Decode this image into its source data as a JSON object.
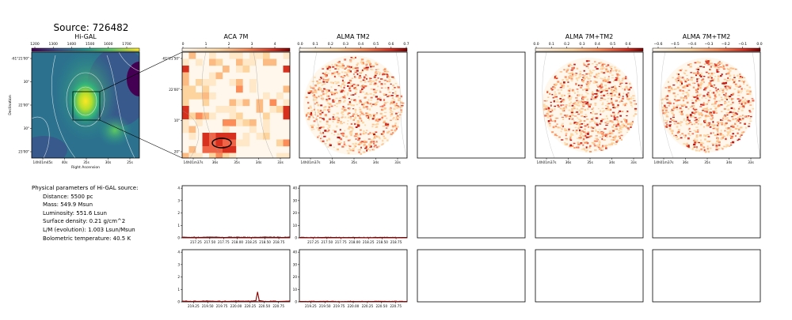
{
  "figure": {
    "source_title": "Source: 726482",
    "panel_titles": [
      "Hi-GAL",
      "ACA 7M",
      "ALMA TM2",
      "ALMA 7M+TM2",
      "ALMA 7M+TM2"
    ],
    "colormaps": {
      "higal": "viridis",
      "maps": "OrRd"
    }
  },
  "colorbars": {
    "higal": [
      "1200",
      "1300",
      "1400",
      "1500",
      "1600",
      "1700"
    ],
    "aca": [
      "0",
      "1",
      "2",
      "3",
      "4"
    ],
    "tm2": [
      "0.0",
      "0.1",
      "0.2",
      "0.3",
      "0.4",
      "0.5",
      "0.6",
      "0.7"
    ],
    "comb1": [
      "0.0",
      "0.1",
      "0.2",
      "0.3",
      "0.4",
      "0.5",
      "0.6"
    ],
    "comb2": [
      "−0.6",
      "−0.5",
      "−0.4",
      "−0.3",
      "−0.2",
      "−0.1",
      "0.0"
    ]
  },
  "axes": {
    "higal": {
      "ylabel": "Declination",
      "xlabel": "Right Ascension",
      "yticks": [
        "-61°21'00\"",
        "30\"",
        "22'00\"",
        "30\"",
        "23'00\""
      ],
      "xticks": [
        "14h01m45s",
        "40s",
        "35s",
        "30s",
        "25s"
      ]
    },
    "aca": {
      "yticks": [
        "-61°21'50\"",
        "22'00\"",
        "10\"",
        "20\""
      ],
      "xticks": [
        "14h01m37s",
        "36s",
        "35s",
        "34s",
        "33s"
      ]
    },
    "tm2": {
      "xticks": [
        "14h01m37s",
        "36s",
        "35s",
        "34s",
        "33s"
      ]
    },
    "comb1": {
      "xticks": [
        "14h01m37s",
        "36s",
        "35s",
        "34s",
        "33s"
      ]
    },
    "comb2": {
      "xticks": [
        "14h01m37s",
        "36s",
        "35s",
        "34s",
        "33s"
      ]
    }
  },
  "info": {
    "heading": "Physical parameters of Hi-GAL source:",
    "lines": [
      "Distance: 5500 pc",
      "Mass: 549.9 Msun",
      "Luminosity: 551.6 Lsun",
      "Surface density: 0.21 g/cm^2",
      "L/M (evolution): 1.003 Lsun/Msun",
      "Bolometric temperature: 40.5 K"
    ]
  },
  "chart_data": [
    {
      "type": "line",
      "panel": "ACA 7M spectrum, row 1",
      "x": [
        217.0,
        217.25,
        217.5,
        217.75,
        218.0,
        218.25,
        218.5,
        218.75,
        218.95
      ],
      "values": [
        0.05,
        0.02,
        0.06,
        0.03,
        0.04,
        0.02,
        0.05,
        0.03,
        0.04
      ],
      "xticks": [
        "217.25",
        "217.50",
        "217.75",
        "218.00",
        "218.25",
        "218.50",
        "218.75"
      ],
      "yticks": [
        "0",
        "1",
        "2",
        "3",
        "4"
      ],
      "xlim": [
        217.0,
        218.95
      ],
      "ylim": [
        0,
        4.2
      ]
    },
    {
      "type": "line",
      "panel": "ALMA TM2 spectrum, row 1",
      "x": [
        217.0,
        217.25,
        217.5,
        217.75,
        218.0,
        218.25,
        218.5,
        218.75,
        218.95
      ],
      "values": [
        0.3,
        0.1,
        0.4,
        0.2,
        0.3,
        0.1,
        0.4,
        0.2,
        0.3
      ],
      "xticks": [
        "217.25",
        "217.50",
        "217.75",
        "218.00",
        "218.25",
        "218.50",
        "218.75"
      ],
      "yticks": [
        "0",
        "10",
        "20",
        "30",
        "40"
      ],
      "xlim": [
        217.0,
        218.95
      ],
      "ylim": [
        0,
        42
      ]
    },
    {
      "type": "line",
      "panel": "ACA 7M spectrum, row 2",
      "x": [
        219.05,
        219.25,
        219.5,
        219.75,
        220.0,
        220.25,
        220.35,
        220.38,
        220.41,
        220.5,
        220.75,
        220.95
      ],
      "values": [
        0.05,
        0.03,
        0.06,
        0.02,
        0.05,
        0.04,
        0.1,
        0.8,
        0.1,
        0.04,
        0.03,
        0.05
      ],
      "xticks": [
        "219.25",
        "219.50",
        "219.75",
        "220.00",
        "220.25",
        "220.50",
        "220.75"
      ],
      "yticks": [
        "0",
        "1",
        "2",
        "3",
        "4"
      ],
      "xlim": [
        219.05,
        220.95
      ],
      "ylim": [
        0,
        4.2
      ]
    },
    {
      "type": "line",
      "panel": "ALMA TM2 spectrum, row 2",
      "x": [
        219.05,
        219.25,
        219.5,
        219.75,
        220.0,
        220.25,
        220.5,
        220.75,
        220.95
      ],
      "values": [
        0.3,
        0.2,
        0.4,
        0.1,
        0.3,
        0.2,
        0.4,
        0.1,
        0.3
      ],
      "xticks": [
        "219.25",
        "219.50",
        "219.75",
        "220.00",
        "220.25",
        "220.50",
        "220.75"
      ],
      "yticks": [
        "0",
        "10",
        "20",
        "30",
        "40"
      ],
      "xlim": [
        219.05,
        220.95
      ],
      "ylim": [
        0,
        42
      ]
    }
  ]
}
